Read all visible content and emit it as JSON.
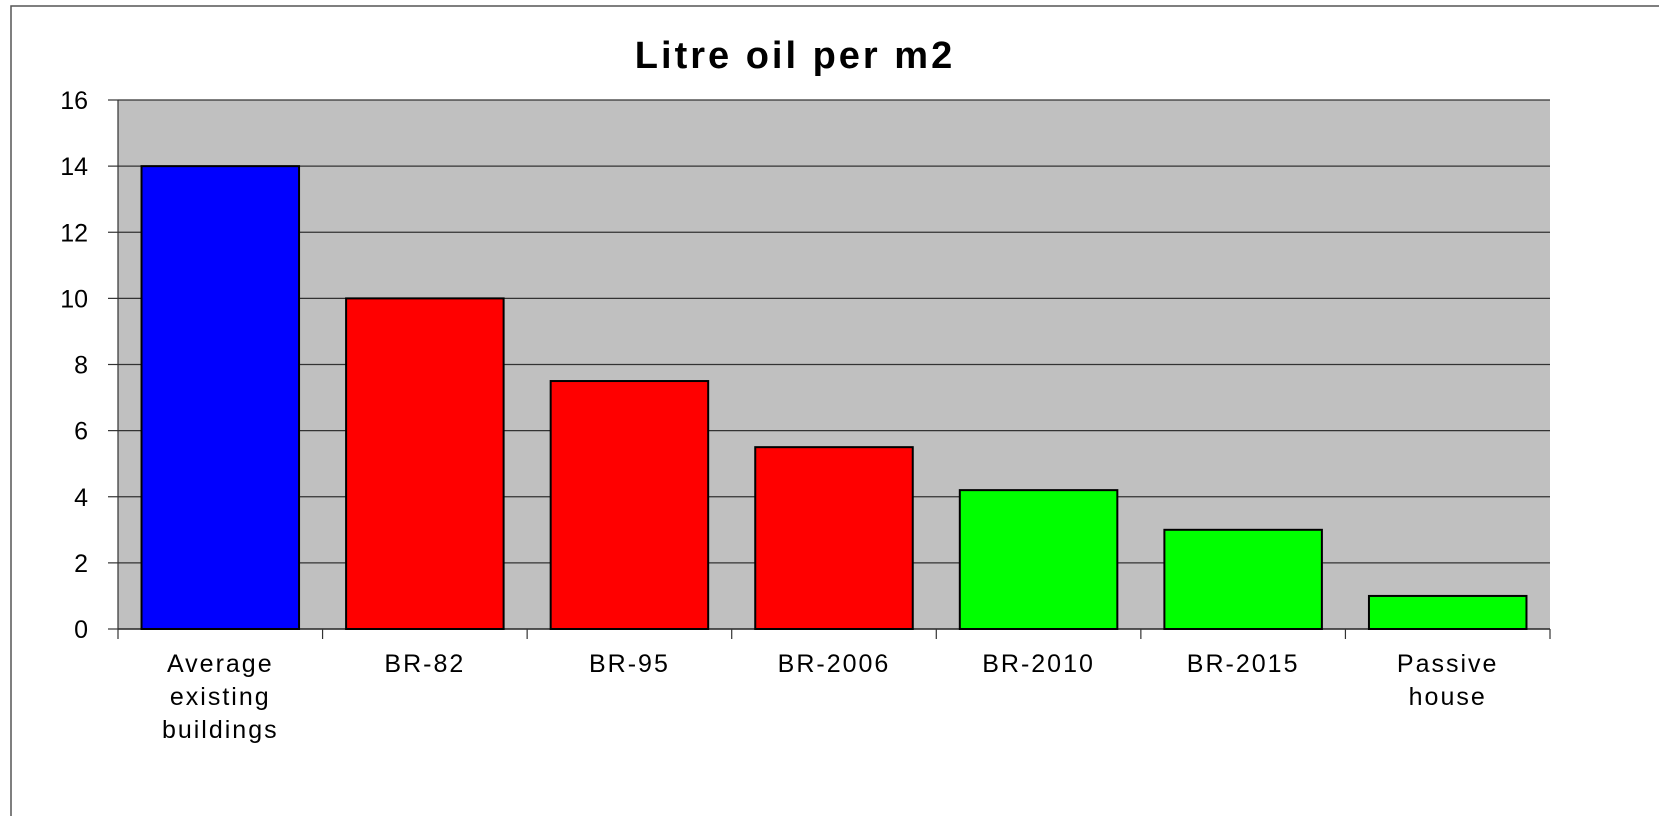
{
  "chart_data": {
    "type": "bar",
    "title": "Litre oil per m2",
    "categories": [
      "Average existing buildings",
      "BR-82",
      "BR-95",
      "BR-2006",
      "BR-2010",
      "BR-2015",
      "Passive house"
    ],
    "values": [
      14,
      10,
      7.5,
      5.5,
      4.2,
      3,
      1
    ],
    "colors": [
      "#0000ff",
      "#ff0000",
      "#ff0000",
      "#ff0000",
      "#00ff00",
      "#00ff00",
      "#00ff00"
    ],
    "ylim": [
      0,
      16
    ],
    "yticks": [
      0,
      2,
      4,
      6,
      8,
      10,
      12,
      14,
      16
    ],
    "grid": true
  }
}
